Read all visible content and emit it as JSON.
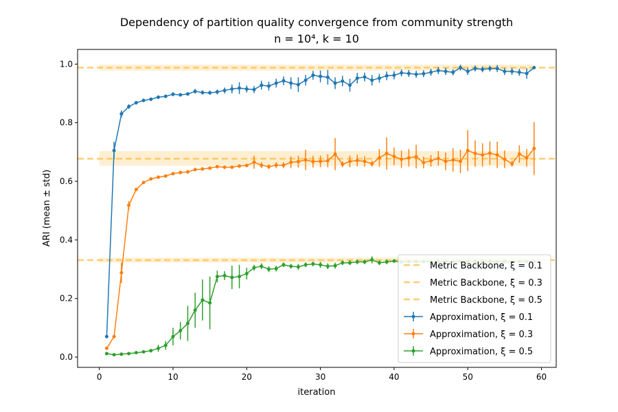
{
  "chart_data": {
    "type": "line",
    "title": "Dependency of partition quality convergence from community strength",
    "subtitle": "n = 10⁴, k = 10",
    "xlabel": "iteration",
    "ylabel": "ARI (mean ± std)",
    "xlim": [
      -2.95,
      62
    ],
    "ylim": [
      -0.035,
      1.05
    ],
    "xticks": [
      0,
      10,
      20,
      30,
      40,
      50,
      60
    ],
    "yticks": [
      0.0,
      0.2,
      0.4,
      0.6,
      0.8,
      1.0
    ],
    "xtick_labels": [
      "0",
      "10",
      "20",
      "30",
      "40",
      "50",
      "60"
    ],
    "ytick_labels": [
      "0.0",
      "0.2",
      "0.4",
      "0.6",
      "0.8",
      "1.0"
    ],
    "grid": false,
    "legend_position": "lower right",
    "references": [
      {
        "name": "Metric Backbone, ξ = 0.1",
        "value": 0.988,
        "band": [
          0.978,
          0.998
        ],
        "color": "#ffc04c"
      },
      {
        "name": "Metric Backbone, ξ = 0.3",
        "value": 0.677,
        "band": [
          0.653,
          0.703
        ],
        "color": "#ffc04c"
      },
      {
        "name": "Metric Backbone, ξ = 0.5",
        "value": 0.331,
        "band": [
          0.323,
          0.339
        ],
        "color": "#ffc04c"
      }
    ],
    "x": [
      1,
      2,
      3,
      4,
      5,
      6,
      7,
      8,
      9,
      10,
      11,
      12,
      13,
      14,
      15,
      16,
      17,
      18,
      19,
      20,
      21,
      22,
      23,
      24,
      25,
      26,
      27,
      28,
      29,
      30,
      31,
      32,
      33,
      34,
      35,
      36,
      37,
      38,
      39,
      40,
      41,
      42,
      43,
      44,
      45,
      46,
      47,
      48,
      49,
      50,
      51,
      52,
      53,
      54,
      55,
      56,
      57,
      58,
      59
    ],
    "series": [
      {
        "name": "Approximation, ξ = 0.1",
        "color": "#1f77b4",
        "values": [
          0.07,
          0.705,
          0.83,
          0.855,
          0.868,
          0.876,
          0.88,
          0.887,
          0.89,
          0.897,
          0.895,
          0.898,
          0.907,
          0.903,
          0.902,
          0.905,
          0.91,
          0.915,
          0.918,
          0.915,
          0.913,
          0.928,
          0.925,
          0.935,
          0.943,
          0.935,
          0.93,
          0.945,
          0.962,
          0.958,
          0.955,
          0.935,
          0.942,
          0.928,
          0.952,
          0.956,
          0.945,
          0.952,
          0.96,
          0.962,
          0.97,
          0.968,
          0.965,
          0.967,
          0.972,
          0.978,
          0.975,
          0.972,
          0.988,
          0.975,
          0.985,
          0.982,
          0.985,
          0.985,
          0.975,
          0.975,
          0.972,
          0.968,
          0.988
        ],
        "errors": [
          0.004,
          0.03,
          0.012,
          0.008,
          0.006,
          0.006,
          0.006,
          0.005,
          0.006,
          0.007,
          0.006,
          0.006,
          0.008,
          0.007,
          0.007,
          0.008,
          0.01,
          0.015,
          0.02,
          0.012,
          0.012,
          0.015,
          0.015,
          0.015,
          0.015,
          0.02,
          0.025,
          0.018,
          0.015,
          0.02,
          0.025,
          0.02,
          0.018,
          0.022,
          0.018,
          0.015,
          0.018,
          0.015,
          0.015,
          0.014,
          0.012,
          0.012,
          0.012,
          0.012,
          0.012,
          0.012,
          0.012,
          0.01,
          0.01,
          0.012,
          0.01,
          0.01,
          0.01,
          0.012,
          0.012,
          0.012,
          0.012,
          0.018,
          0.004
        ]
      },
      {
        "name": "Approximation, ξ = 0.3",
        "color": "#ff7f0e",
        "values": [
          0.03,
          0.07,
          0.288,
          0.518,
          0.572,
          0.596,
          0.608,
          0.614,
          0.618,
          0.626,
          0.63,
          0.632,
          0.64,
          0.642,
          0.645,
          0.65,
          0.648,
          0.648,
          0.652,
          0.654,
          0.665,
          0.655,
          0.65,
          0.655,
          0.655,
          0.665,
          0.667,
          0.673,
          0.667,
          0.668,
          0.67,
          0.693,
          0.658,
          0.668,
          0.671,
          0.668,
          0.66,
          0.68,
          0.695,
          0.685,
          0.675,
          0.68,
          0.684,
          0.664,
          0.67,
          0.678,
          0.668,
          0.673,
          0.668,
          0.705,
          0.695,
          0.69,
          0.696,
          0.69,
          0.675,
          0.66,
          0.693,
          0.68,
          0.712
        ],
        "errors": [
          0.004,
          0.004,
          0.035,
          0.015,
          0.006,
          0.005,
          0.005,
          0.005,
          0.005,
          0.005,
          0.006,
          0.006,
          0.006,
          0.006,
          0.006,
          0.006,
          0.006,
          0.006,
          0.006,
          0.006,
          0.022,
          0.01,
          0.008,
          0.01,
          0.01,
          0.02,
          0.02,
          0.035,
          0.02,
          0.02,
          0.022,
          0.055,
          0.01,
          0.02,
          0.02,
          0.018,
          0.01,
          0.03,
          0.055,
          0.03,
          0.03,
          0.03,
          0.04,
          0.02,
          0.02,
          0.025,
          0.03,
          0.04,
          0.04,
          0.07,
          0.045,
          0.04,
          0.04,
          0.045,
          0.03,
          0.01,
          0.03,
          0.03,
          0.09
        ]
      },
      {
        "name": "Approximation, ξ = 0.5",
        "color": "#2ca02c",
        "values": [
          0.012,
          0.008,
          0.01,
          0.012,
          0.015,
          0.018,
          0.022,
          0.03,
          0.04,
          0.07,
          0.09,
          0.115,
          0.16,
          0.195,
          0.185,
          0.275,
          0.278,
          0.272,
          0.275,
          0.285,
          0.305,
          0.31,
          0.3,
          0.302,
          0.315,
          0.31,
          0.308,
          0.315,
          0.318,
          0.315,
          0.31,
          0.312,
          0.322,
          0.322,
          0.325,
          0.325,
          0.332,
          0.322,
          0.325,
          0.328,
          0.325,
          0.326,
          0.326,
          0.326,
          0.326,
          0.326,
          0.326,
          0.326,
          0.326,
          0.326,
          0.326,
          0.326,
          0.326,
          0.326,
          0.326,
          0.326,
          0.326,
          0.326,
          0.326
        ],
        "errors": [
          0.003,
          0.002,
          0.003,
          0.003,
          0.004,
          0.004,
          0.006,
          0.012,
          0.015,
          0.03,
          0.03,
          0.06,
          0.06,
          0.07,
          0.09,
          0.02,
          0.015,
          0.04,
          0.04,
          0.02,
          0.01,
          0.01,
          0.01,
          0.01,
          0.008,
          0.008,
          0.01,
          0.008,
          0.008,
          0.01,
          0.01,
          0.01,
          0.008,
          0.008,
          0.008,
          0.008,
          0.012,
          0.008,
          0.008,
          0.006,
          0.006,
          0.006,
          0.006,
          0.006,
          0.006,
          0.006,
          0.006,
          0.006,
          0.006,
          0.006,
          0.006,
          0.006,
          0.006,
          0.006,
          0.006,
          0.006,
          0.006,
          0.006,
          0.006
        ]
      }
    ]
  }
}
